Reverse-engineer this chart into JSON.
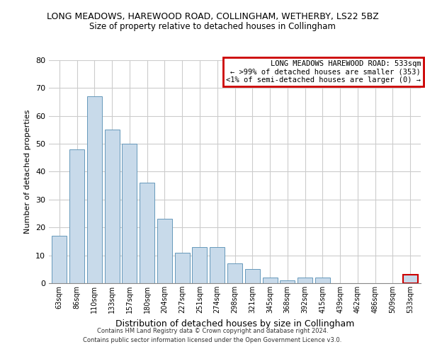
{
  "title": "LONG MEADOWS, HAREWOOD ROAD, COLLINGHAM, WETHERBY, LS22 5BZ",
  "subtitle": "Size of property relative to detached houses in Collingham",
  "xlabel": "Distribution of detached houses by size in Collingham",
  "ylabel": "Number of detached properties",
  "bar_labels": [
    "63sqm",
    "86sqm",
    "110sqm",
    "133sqm",
    "157sqm",
    "180sqm",
    "204sqm",
    "227sqm",
    "251sqm",
    "274sqm",
    "298sqm",
    "321sqm",
    "345sqm",
    "368sqm",
    "392sqm",
    "415sqm",
    "439sqm",
    "462sqm",
    "486sqm",
    "509sqm",
    "533sqm"
  ],
  "bar_values_full": [
    17,
    48,
    67,
    55,
    50,
    36,
    23,
    11,
    13,
    13,
    7,
    5,
    2,
    1,
    2,
    2,
    0,
    0,
    0,
    0,
    3
  ],
  "bar_color": "#c8daea",
  "bar_edge_color": "#6699bb",
  "highlight_bar_index": 20,
  "highlight_bar_edge_color": "#cc0000",
  "ylim": [
    0,
    80
  ],
  "yticks": [
    0,
    10,
    20,
    30,
    40,
    50,
    60,
    70,
    80
  ],
  "legend_title": "LONG MEADOWS HAREWOOD ROAD: 533sqm",
  "legend_line1": "← >99% of detached houses are smaller (353)",
  "legend_line2": "<1% of semi-detached houses are larger (0) →",
  "legend_box_color": "#cc0000",
  "footer_line1": "Contains HM Land Registry data © Crown copyright and database right 2024.",
  "footer_line2": "Contains public sector information licensed under the Open Government Licence v3.0.",
  "background_color": "#ffffff",
  "grid_color": "#cccccc",
  "title_fontsize": 9,
  "subtitle_fontsize": 8.5,
  "ylabel_fontsize": 8,
  "xlabel_fontsize": 9,
  "tick_fontsize": 7,
  "footer_fontsize": 6,
  "legend_fontsize": 7.5
}
